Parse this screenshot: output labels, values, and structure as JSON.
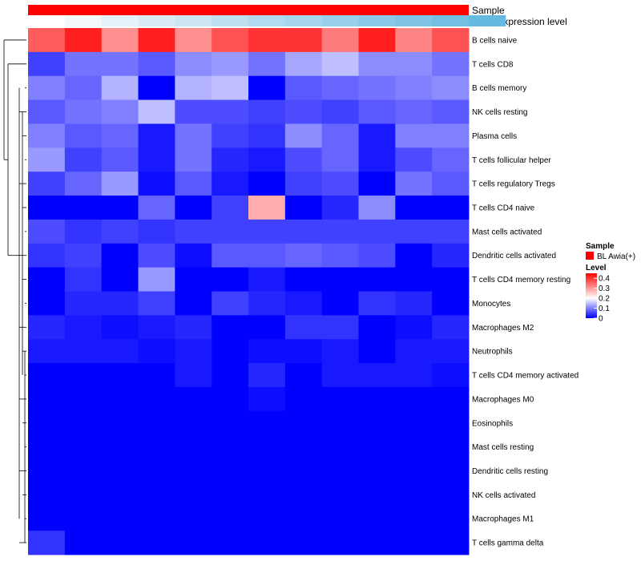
{
  "chart_data": {
    "type": "heatmap",
    "annotations": {
      "sample_label": "Sample",
      "gene_label": "Gene expression level",
      "sample_color": "#ff0000",
      "gene_colors": [
        "#ffffff",
        "#f3f8fb",
        "#e6f2f9",
        "#d9ecf6",
        "#cce6f4",
        "#bfe0f1",
        "#b2daef",
        "#a6d5ed",
        "#99cfea",
        "#8cc9e8",
        "#80c4e6",
        "#73bfe3",
        "#66bae1"
      ]
    },
    "rows": [
      "B cells naive",
      "T cells CD8",
      "B cells memory",
      "NK cells resting",
      "Plasma cells",
      "T cells follicular helper",
      "T cells regulatory  Tregs",
      "T cells CD4 naive",
      "Mast cells activated",
      "Dendritic cells activated",
      "T cells CD4 memory resting",
      "Monocytes",
      "Macrophages M2",
      "Neutrophils",
      "T cells CD4 memory activated",
      "Macrophages M0",
      "Eosinophils",
      "Mast cells resting",
      "Dendritic cells resting",
      "NK cells activated",
      "Macrophages M1",
      "T cells gamma delta"
    ],
    "values": [
      [
        0.36,
        0.42,
        0.31,
        0.42,
        0.31,
        0.37,
        0.4,
        0.4,
        0.33,
        0.42,
        0.32,
        0.37
      ],
      [
        0.05,
        0.09,
        0.09,
        0.07,
        0.11,
        0.12,
        0.09,
        0.13,
        0.15,
        0.11,
        0.11,
        0.09
      ],
      [
        0.1,
        0.08,
        0.14,
        0.0,
        0.14,
        0.15,
        0.0,
        0.07,
        0.08,
        0.09,
        0.1,
        0.11
      ],
      [
        0.07,
        0.09,
        0.1,
        0.15,
        0.06,
        0.06,
        0.05,
        0.06,
        0.05,
        0.07,
        0.08,
        0.07
      ],
      [
        0.1,
        0.07,
        0.08,
        0.02,
        0.09,
        0.05,
        0.04,
        0.11,
        0.08,
        0.02,
        0.1,
        0.1
      ],
      [
        0.12,
        0.05,
        0.07,
        0.02,
        0.09,
        0.03,
        0.02,
        0.06,
        0.08,
        0.02,
        0.06,
        0.08
      ],
      [
        0.05,
        0.08,
        0.12,
        0.01,
        0.07,
        0.02,
        0.0,
        0.05,
        0.06,
        0.0,
        0.09,
        0.07
      ],
      [
        0.0,
        0.0,
        0.0,
        0.08,
        0.0,
        0.05,
        0.28,
        0.0,
        0.03,
        0.11,
        0.0,
        0.0
      ],
      [
        0.06,
        0.04,
        0.05,
        0.04,
        0.05,
        0.05,
        0.05,
        0.05,
        0.05,
        0.05,
        0.05,
        0.05
      ],
      [
        0.04,
        0.05,
        0.0,
        0.06,
        0.01,
        0.07,
        0.07,
        0.08,
        0.07,
        0.06,
        0.0,
        0.03
      ],
      [
        0.0,
        0.04,
        0.0,
        0.12,
        0.0,
        0.0,
        0.02,
        0.0,
        0.0,
        0.0,
        0.0,
        0.0
      ],
      [
        0.0,
        0.03,
        0.03,
        0.05,
        0.0,
        0.05,
        0.03,
        0.02,
        0.0,
        0.04,
        0.03,
        0.0
      ],
      [
        0.03,
        0.02,
        0.01,
        0.02,
        0.03,
        0.0,
        0.0,
        0.04,
        0.04,
        0.0,
        0.01,
        0.03
      ],
      [
        0.02,
        0.02,
        0.02,
        0.01,
        0.02,
        0.0,
        0.01,
        0.01,
        0.02,
        0.0,
        0.02,
        0.02
      ],
      [
        0.0,
        0.0,
        0.0,
        0.0,
        0.02,
        0.0,
        0.03,
        0.0,
        0.02,
        0.02,
        0.02,
        0.01
      ],
      [
        0.0,
        0.0,
        0.0,
        0.0,
        0.0,
        0.0,
        0.01,
        0.0,
        0.0,
        0.0,
        0.0,
        0.0
      ],
      [
        0,
        0,
        0,
        0,
        0,
        0,
        0,
        0,
        0,
        0,
        0,
        0
      ],
      [
        0,
        0,
        0,
        0,
        0,
        0,
        0,
        0,
        0,
        0,
        0,
        0
      ],
      [
        0,
        0,
        0,
        0,
        0,
        0,
        0,
        0,
        0,
        0,
        0,
        0
      ],
      [
        0,
        0,
        0,
        0,
        0,
        0,
        0,
        0,
        0,
        0,
        0,
        0
      ],
      [
        0,
        0,
        0,
        0,
        0,
        0,
        0,
        0,
        0,
        0,
        0,
        0
      ],
      [
        0.04,
        0,
        0,
        0,
        0,
        0,
        0,
        0,
        0,
        0,
        0,
        0
      ]
    ],
    "color_scale": {
      "min": 0,
      "max": 0.45,
      "stops": [
        {
          "value": 0,
          "color": "#0000ff"
        },
        {
          "value": 0.2,
          "color": "#ffffff"
        },
        {
          "value": 0.45,
          "color": "#ff0000"
        }
      ]
    },
    "legend": {
      "sample_title": "Sample",
      "sample_entry": "BL Awia(+)",
      "sample_entry_color": "#ff0000",
      "level_title": "Level",
      "level_ticks": [
        {
          "value": 0.4,
          "label": "0.4"
        },
        {
          "value": 0.3,
          "label": "0.3"
        },
        {
          "value": 0.2,
          "label": "0.2"
        },
        {
          "value": 0.1,
          "label": "0.1"
        },
        {
          "value": 0,
          "label": "0"
        }
      ],
      "placement": "right"
    },
    "dendrogram": "rows"
  }
}
